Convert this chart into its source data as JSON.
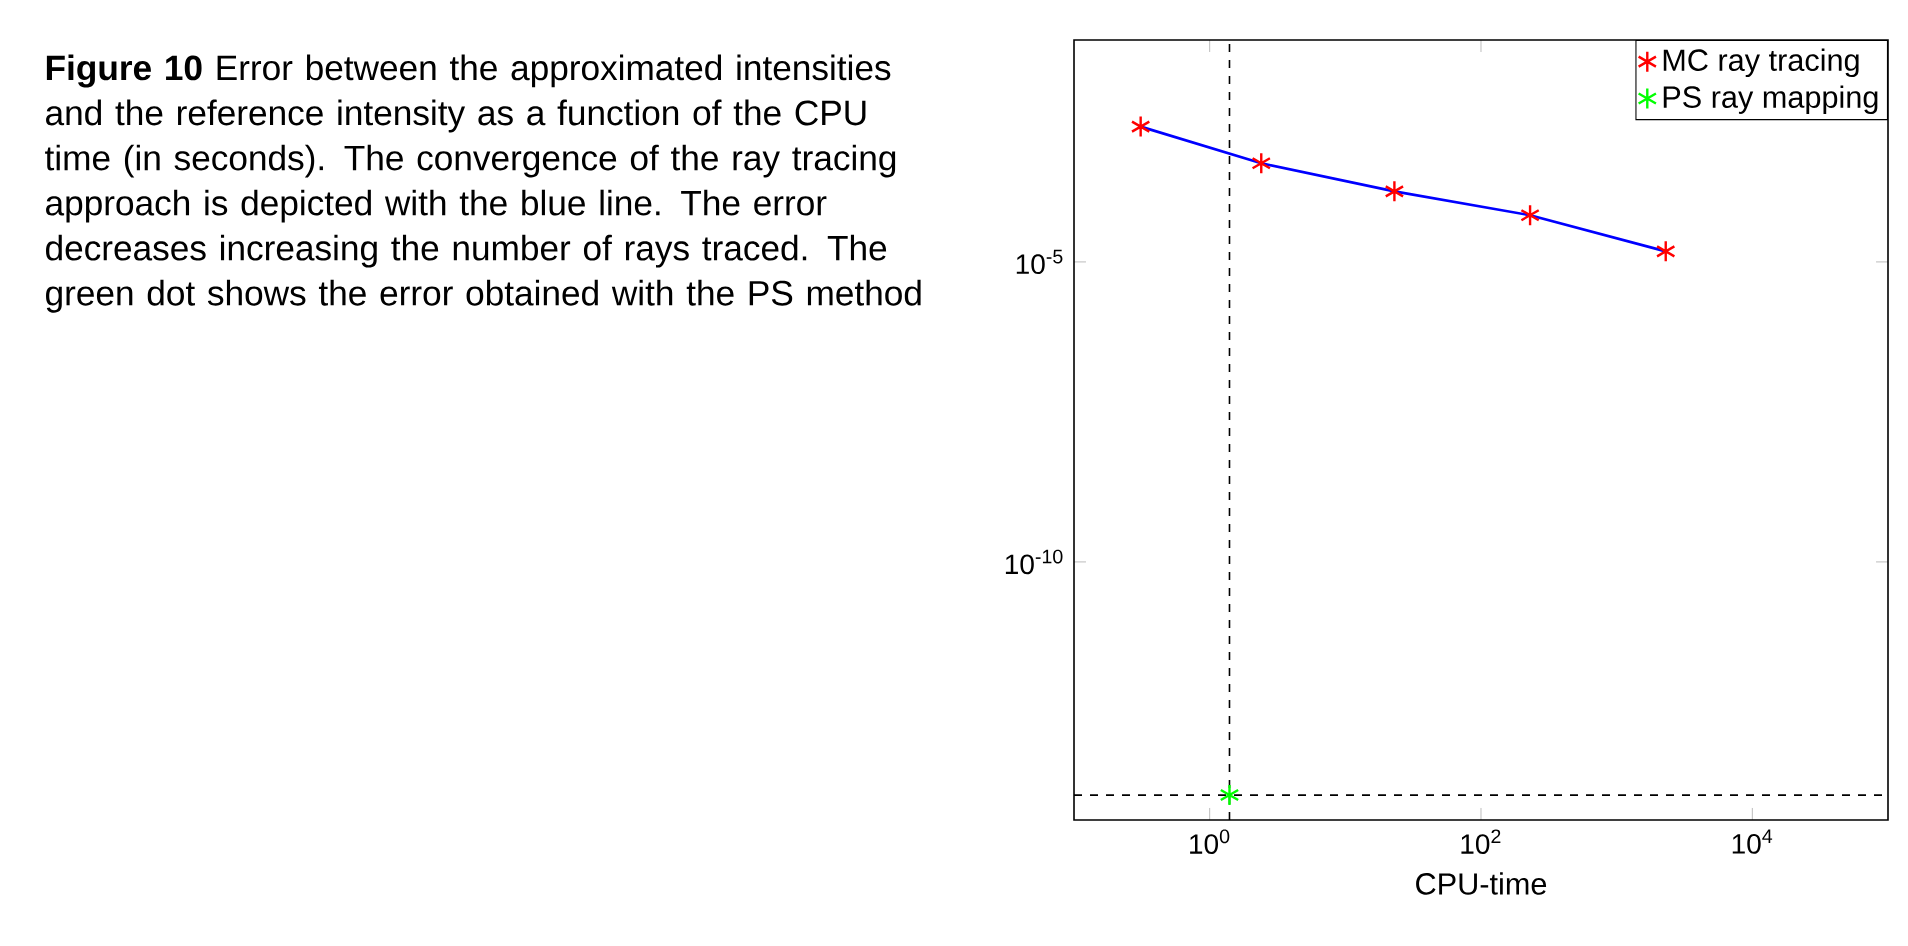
{
  "chart_data": {
    "type": "scatter",
    "title": "**Figure 10** Error between the approximated intensities and the reference intensity as a function of the CPU time (in seconds). The convergence of the ray tracing approach is depicted with the blue line. The error decreases increasing the number of rays traced. The green dot shows the error obtained with the PS method",
    "xlabel": "CPU-time",
    "log": "xy",
    "marker": "cross",
    "legend": "top right",
    "grid": false,
    "xlim": [
      0.1,
      100000
    ],
    "ylim": [
      5e-15,
      0.05
    ],
    "xticks": [
      {
        "value": 1,
        "label": "10$^{0}$"
      },
      {
        "value": 100,
        "label": "10$^{2}$"
      },
      {
        "value": 10000,
        "label": "10$^{4}$"
      }
    ],
    "yticks": [
      {
        "value": 1e-10,
        "label": "10$^{-10}$"
      },
      {
        "value": 1e-05,
        "label": "10$^{-5}$"
      }
    ],
    "series": [
      {
        "type": "line",
        "color": "#0000ff",
        "x": [
          0.31,
          2.4,
          23,
          230,
          2300
        ],
        "values": [
          0.0018,
          0.00044,
          0.00015,
          6e-05,
          1.5e-05
        ],
        "marker": "none"
      },
      {
        "name": "MC ray tracing",
        "color": "#ff0000",
        "x": [
          0.31,
          2.4,
          23,
          230,
          2300
        ],
        "values": [
          0.0018,
          0.00044,
          0.00015,
          6e-05,
          1.5e-05
        ]
      },
      {
        "name": "PS ray mapping",
        "color": "#00ff00",
        "x": [
          1.4
        ],
        "values": [
          1.3e-14
        ]
      }
    ],
    "ref_lines": [
      {
        "axis": "x",
        "value": 1.4,
        "line_style": "dashed",
        "color": "#000000"
      },
      {
        "axis": "y",
        "value": 1.3e-14,
        "line_style": "dashed",
        "color": "#000000"
      }
    ]
  }
}
